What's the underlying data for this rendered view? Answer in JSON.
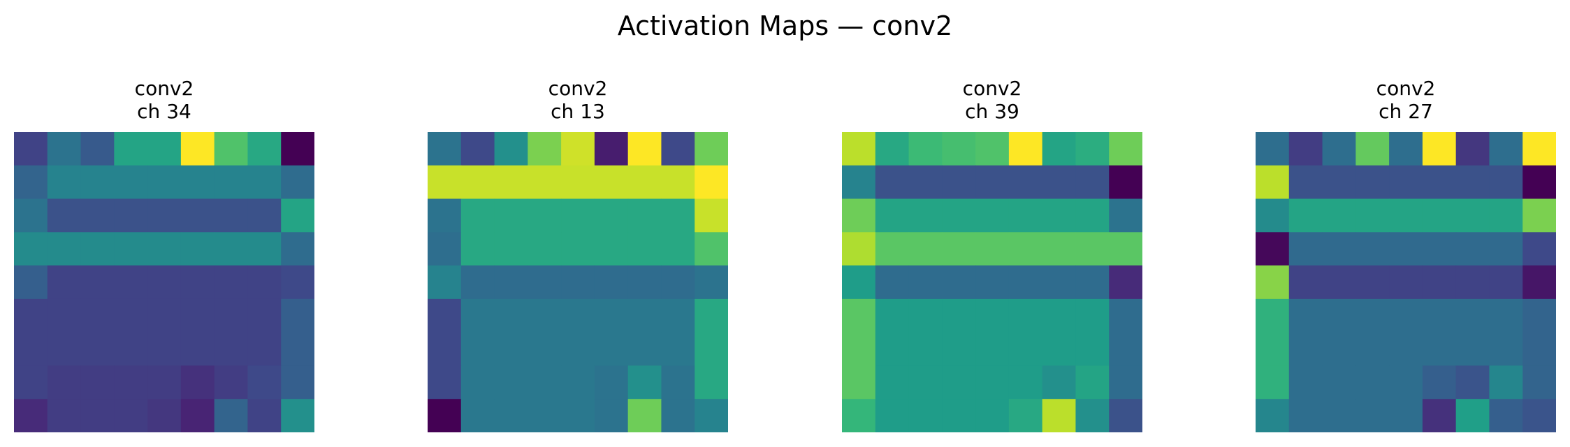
{
  "title": "Activation Maps — conv2",
  "colormap": "viridis",
  "chart_data": [
    {
      "type": "heatmap",
      "title": "conv2\nch 34",
      "title_lines": [
        "conv2",
        "ch 34"
      ],
      "rows": 9,
      "cols": 9,
      "value_range": [
        0,
        1
      ],
      "values": [
        [
          0.2,
          0.38,
          0.28,
          0.58,
          0.58,
          1.0,
          0.72,
          0.6,
          0.0
        ],
        [
          0.32,
          0.45,
          0.45,
          0.45,
          0.45,
          0.45,
          0.45,
          0.45,
          0.35
        ],
        [
          0.38,
          0.25,
          0.25,
          0.25,
          0.25,
          0.25,
          0.25,
          0.25,
          0.58
        ],
        [
          0.48,
          0.48,
          0.48,
          0.48,
          0.48,
          0.48,
          0.48,
          0.48,
          0.35
        ],
        [
          0.3,
          0.2,
          0.2,
          0.2,
          0.2,
          0.2,
          0.2,
          0.2,
          0.22
        ],
        [
          0.2,
          0.2,
          0.2,
          0.2,
          0.2,
          0.2,
          0.2,
          0.2,
          0.3
        ],
        [
          0.2,
          0.2,
          0.2,
          0.2,
          0.2,
          0.2,
          0.2,
          0.2,
          0.3
        ],
        [
          0.2,
          0.18,
          0.18,
          0.18,
          0.18,
          0.14,
          0.18,
          0.22,
          0.3
        ],
        [
          0.12,
          0.18,
          0.18,
          0.18,
          0.16,
          0.1,
          0.32,
          0.2,
          0.5
        ]
      ]
    },
    {
      "type": "heatmap",
      "title": "conv2\nch 13",
      "title_lines": [
        "conv2",
        "ch 13"
      ],
      "rows": 9,
      "cols": 9,
      "value_range": [
        0,
        1
      ],
      "values": [
        [
          0.38,
          0.22,
          0.5,
          0.8,
          0.93,
          0.08,
          1.0,
          0.22,
          0.78
        ],
        [
          0.92,
          0.92,
          0.92,
          0.92,
          0.92,
          0.92,
          0.92,
          0.92,
          1.0
        ],
        [
          0.38,
          0.6,
          0.6,
          0.6,
          0.6,
          0.6,
          0.6,
          0.6,
          0.92
        ],
        [
          0.36,
          0.6,
          0.6,
          0.6,
          0.6,
          0.6,
          0.6,
          0.6,
          0.72
        ],
        [
          0.45,
          0.35,
          0.35,
          0.35,
          0.35,
          0.35,
          0.35,
          0.35,
          0.38
        ],
        [
          0.22,
          0.4,
          0.4,
          0.4,
          0.4,
          0.4,
          0.4,
          0.4,
          0.6
        ],
        [
          0.22,
          0.4,
          0.4,
          0.4,
          0.4,
          0.4,
          0.4,
          0.4,
          0.6
        ],
        [
          0.22,
          0.4,
          0.4,
          0.4,
          0.4,
          0.38,
          0.5,
          0.38,
          0.6
        ],
        [
          0.0,
          0.4,
          0.4,
          0.4,
          0.4,
          0.38,
          0.78,
          0.38,
          0.45
        ]
      ]
    },
    {
      "type": "heatmap",
      "title": "conv2\nch 39",
      "title_lines": [
        "conv2",
        "ch 39"
      ],
      "rows": 9,
      "cols": 9,
      "value_range": [
        0,
        1
      ],
      "values": [
        [
          0.9,
          0.6,
          0.68,
          0.7,
          0.72,
          1.0,
          0.58,
          0.62,
          0.78
        ],
        [
          0.45,
          0.25,
          0.25,
          0.25,
          0.25,
          0.25,
          0.25,
          0.25,
          0.0
        ],
        [
          0.78,
          0.58,
          0.58,
          0.58,
          0.58,
          0.58,
          0.58,
          0.58,
          0.38
        ],
        [
          0.88,
          0.74,
          0.74,
          0.74,
          0.74,
          0.74,
          0.74,
          0.74,
          0.74
        ],
        [
          0.55,
          0.35,
          0.35,
          0.35,
          0.35,
          0.35,
          0.35,
          0.35,
          0.12
        ],
        [
          0.74,
          0.55,
          0.55,
          0.55,
          0.55,
          0.55,
          0.55,
          0.55,
          0.35
        ],
        [
          0.74,
          0.55,
          0.55,
          0.55,
          0.55,
          0.55,
          0.55,
          0.55,
          0.35
        ],
        [
          0.74,
          0.55,
          0.55,
          0.55,
          0.55,
          0.55,
          0.5,
          0.58,
          0.35
        ],
        [
          0.66,
          0.55,
          0.55,
          0.55,
          0.55,
          0.6,
          0.9,
          0.5,
          0.25
        ]
      ]
    },
    {
      "type": "heatmap",
      "title": "conv2\nch 27",
      "title_lines": [
        "conv2",
        "ch 27"
      ],
      "rows": 9,
      "cols": 9,
      "value_range": [
        0,
        1
      ],
      "values": [
        [
          0.36,
          0.18,
          0.36,
          0.76,
          0.36,
          1.0,
          0.16,
          0.36,
          1.0
        ],
        [
          0.9,
          0.25,
          0.25,
          0.25,
          0.25,
          0.25,
          0.25,
          0.25,
          0.0
        ],
        [
          0.48,
          0.58,
          0.58,
          0.58,
          0.58,
          0.58,
          0.58,
          0.58,
          0.8
        ],
        [
          0.02,
          0.34,
          0.34,
          0.34,
          0.34,
          0.34,
          0.34,
          0.34,
          0.22
        ],
        [
          0.82,
          0.2,
          0.2,
          0.2,
          0.2,
          0.2,
          0.2,
          0.2,
          0.06
        ],
        [
          0.64,
          0.36,
          0.36,
          0.36,
          0.36,
          0.36,
          0.36,
          0.36,
          0.32
        ],
        [
          0.64,
          0.36,
          0.36,
          0.36,
          0.36,
          0.36,
          0.36,
          0.36,
          0.32
        ],
        [
          0.64,
          0.36,
          0.36,
          0.36,
          0.36,
          0.3,
          0.26,
          0.46,
          0.32
        ],
        [
          0.46,
          0.36,
          0.36,
          0.36,
          0.36,
          0.14,
          0.56,
          0.3,
          0.26
        ]
      ]
    }
  ]
}
